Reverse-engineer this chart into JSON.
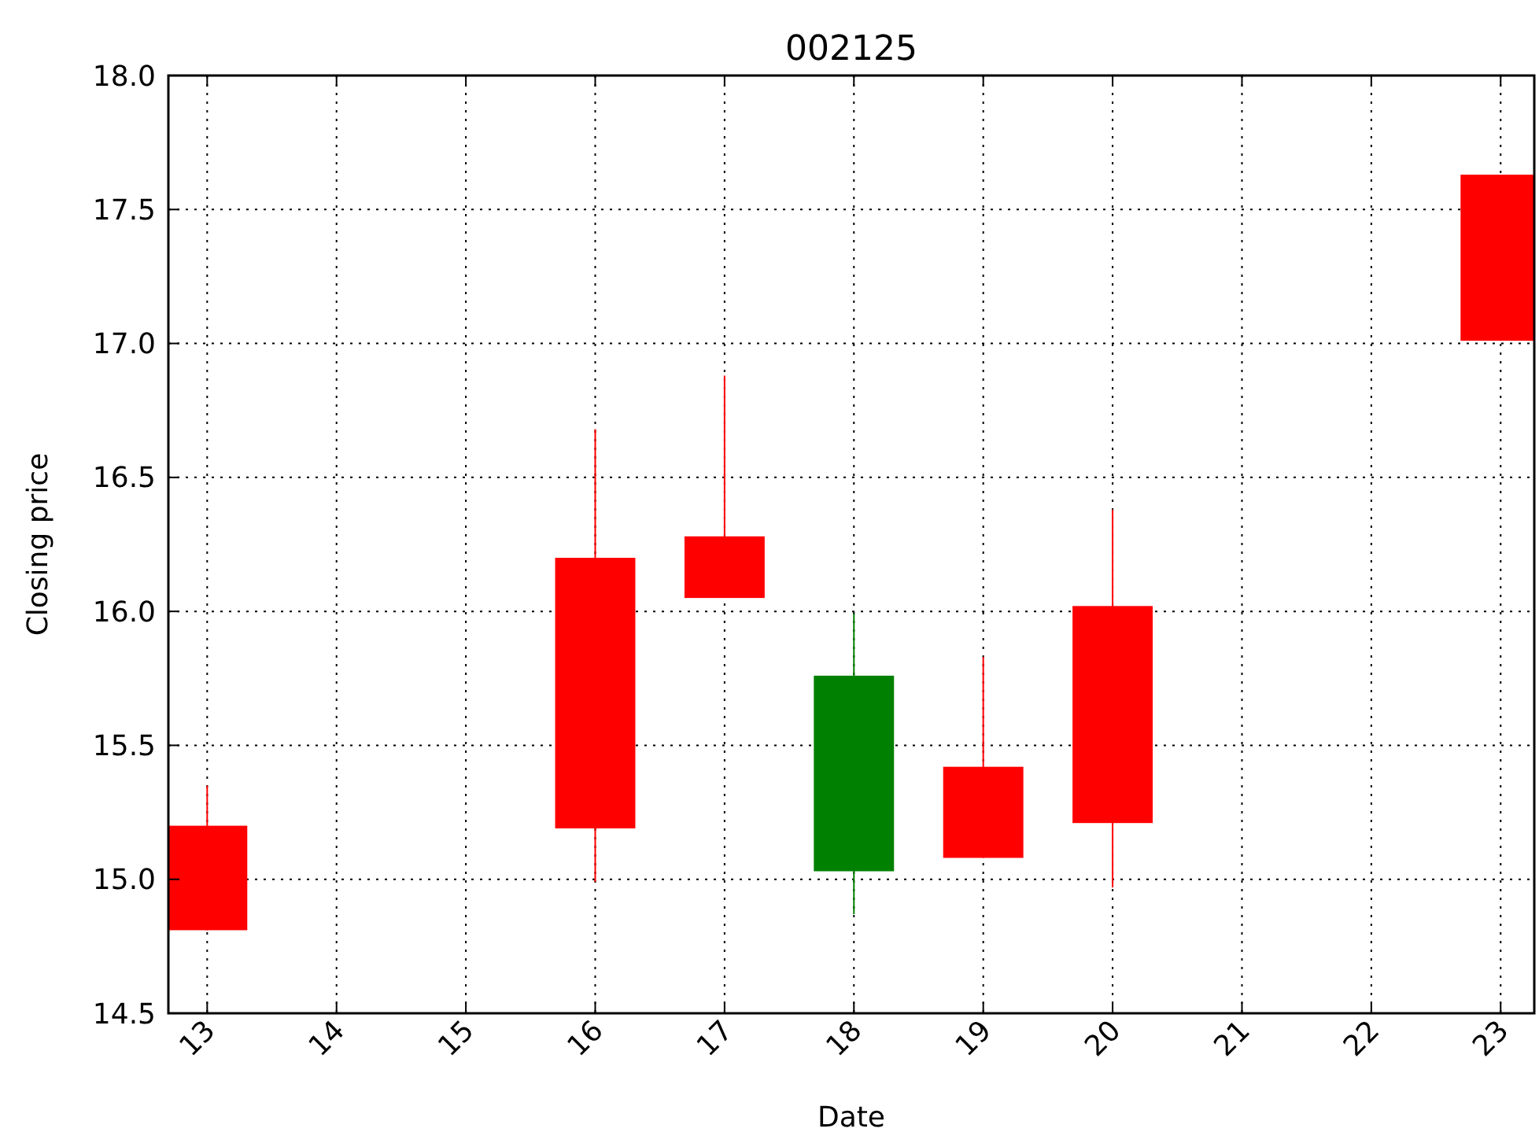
{
  "chart_data": {
    "type": "candlestick",
    "title": "002125",
    "xlabel": "Date",
    "ylabel": "Closing price",
    "x": [
      13,
      16,
      17,
      18,
      19,
      20,
      23
    ],
    "ohlc": [
      [
        14.81,
        15.35,
        14.81,
        15.2
      ],
      [
        15.19,
        16.68,
        14.99,
        16.2
      ],
      [
        16.05,
        16.88,
        16.05,
        16.28
      ],
      [
        15.76,
        15.99,
        14.87,
        15.03
      ],
      [
        15.08,
        15.83,
        15.08,
        15.42
      ],
      [
        15.21,
        16.38,
        14.97,
        16.02
      ],
      [
        17.01,
        17.63,
        17.01,
        17.63
      ]
    ],
    "colors": [
      "#ff0000",
      "#ff0000",
      "#ff0000",
      "#008000",
      "#ff0000",
      "#ff0000",
      "#ff0000"
    ],
    "xlim": [
      12.7,
      23.26
    ],
    "xticks": [
      13,
      14,
      15,
      16,
      17,
      18,
      19,
      20,
      21,
      22,
      23
    ],
    "ylim": [
      14.5,
      18.0
    ],
    "yticks": [
      {
        "value": 14.5,
        "label": "14.5"
      },
      {
        "value": 15,
        "label": "15.0"
      },
      {
        "value": 15.5,
        "label": "15.5"
      },
      {
        "value": 16,
        "label": "16.0"
      },
      {
        "value": 16.5,
        "label": "16.5"
      },
      {
        "value": 17,
        "label": "17.0"
      },
      {
        "value": 17.5,
        "label": "17.5"
      },
      {
        "value": 18,
        "label": "18.0"
      }
    ],
    "grid": true
  }
}
